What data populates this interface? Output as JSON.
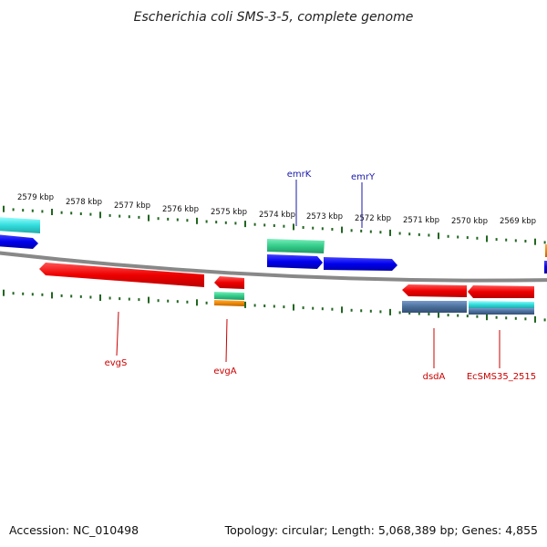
{
  "title": "Escherichia coli SMS-3-5, complete genome",
  "footer": {
    "accession": "Accession: NC_010498",
    "summary": "Topology: circular; Length: 5,068,389 bp; Genes: 4,855"
  },
  "scale_ticks": [
    "2579 kbp",
    "2578 kbp",
    "2577 kbp",
    "2576 kbp",
    "2575 kbp",
    "2574 kbp",
    "2573 kbp",
    "2572 kbp",
    "2571 kbp",
    "2570 kbp",
    "2569 kbp"
  ],
  "gene_labels": {
    "emrK": "emrK",
    "emrY": "emrY",
    "evgS": "evgS",
    "evgA": "evgA",
    "dsdA": "dsdA",
    "EcSMS35_2515": "EcSMS35_2515"
  },
  "colors": {
    "forward_label": "#1a1aaa",
    "reverse_label": "#cc0000",
    "red_gene": "#ee0000",
    "blue_gene": "#0000ee",
    "cyan_gene": "#33dddd",
    "green_gene": "#33cc88",
    "steel_gene": "#4a6f9a",
    "orange_gene": "#ee8800",
    "tick": "#226622",
    "backbone": "#888888"
  }
}
